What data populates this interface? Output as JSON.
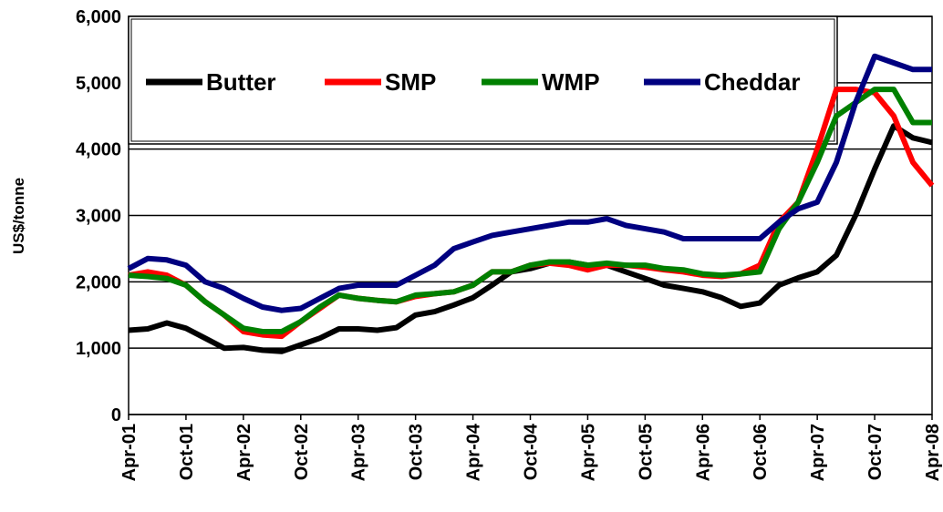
{
  "chart_data": {
    "type": "line",
    "ylabel": "US$/tonne",
    "categories": [
      "Apr-01",
      null,
      null,
      "Oct-01",
      null,
      null,
      "Apr-02",
      null,
      null,
      "Oct-02",
      null,
      null,
      "Apr-03",
      null,
      null,
      "Oct-03",
      null,
      null,
      "Apr-04",
      null,
      null,
      "Oct-04",
      null,
      null,
      "Apr-05",
      null,
      null,
      "Oct-05",
      null,
      null,
      "Apr-06",
      null,
      null,
      "Oct-06",
      null,
      null,
      "Apr-07",
      null,
      null,
      "Oct-07",
      null,
      null,
      "Apr-08"
    ],
    "series": [
      {
        "name": "Butter",
        "color": "#000000",
        "values": [
          1270,
          1290,
          1380,
          1300,
          1150,
          1000,
          1010,
          970,
          950,
          1050,
          1150,
          1290,
          1290,
          1270,
          1310,
          1500,
          1550,
          1650,
          1760,
          1950,
          2150,
          2200,
          2280,
          2300,
          2250,
          2250,
          2150,
          2050,
          1950,
          1900,
          1850,
          1760,
          1630,
          1680,
          1950,
          2060,
          2150,
          2400,
          3000,
          3700,
          4350,
          4170,
          4100
        ]
      },
      {
        "name": "SMP",
        "color": "#ff0000",
        "values": [
          2100,
          2150,
          2100,
          1950,
          1700,
          1500,
          1250,
          1200,
          1180,
          1400,
          1600,
          1800,
          1750,
          1720,
          1700,
          1780,
          1820,
          1850,
          1950,
          2150,
          2150,
          2250,
          2280,
          2250,
          2180,
          2250,
          2250,
          2220,
          2180,
          2150,
          2100,
          2080,
          2120,
          2250,
          2900,
          3200,
          4000,
          4900,
          4900,
          4850,
          4500,
          3800,
          3450
        ]
      },
      {
        "name": "WMP",
        "color": "#008000",
        "values": [
          2100,
          2080,
          2050,
          1950,
          1700,
          1500,
          1300,
          1250,
          1250,
          1400,
          1620,
          1800,
          1750,
          1720,
          1700,
          1800,
          1820,
          1850,
          1950,
          2150,
          2150,
          2250,
          2300,
          2300,
          2250,
          2280,
          2250,
          2250,
          2200,
          2180,
          2120,
          2100,
          2120,
          2150,
          2800,
          3200,
          3800,
          4500,
          4700,
          4900,
          4900,
          4400,
          4400
        ]
      },
      {
        "name": "Cheddar",
        "color": "#000080",
        "values": [
          2200,
          2350,
          2330,
          2250,
          2000,
          1900,
          1750,
          1620,
          1570,
          1600,
          1750,
          1900,
          1950,
          1950,
          1950,
          2100,
          2250,
          2500,
          2600,
          2700,
          2750,
          2800,
          2850,
          2900,
          2900,
          2950,
          2850,
          2800,
          2750,
          2650,
          2650,
          2650,
          2650,
          2650,
          2900,
          3100,
          3200,
          3800,
          4700,
          5400,
          5300,
          5200,
          5200
        ]
      }
    ],
    "ylim": [
      0,
      6000
    ],
    "yticks": [
      0,
      {
        "value": 1000,
        "label": "1,000"
      },
      {
        "value": 2000,
        "label": "2,000"
      },
      {
        "value": 3000,
        "label": "3,000"
      },
      {
        "value": 4000,
        "label": "4,000"
      },
      {
        "value": 5000,
        "label": "5,000"
      },
      {
        "value": 6000,
        "label": "6,000"
      }
    ],
    "grid": true
  }
}
